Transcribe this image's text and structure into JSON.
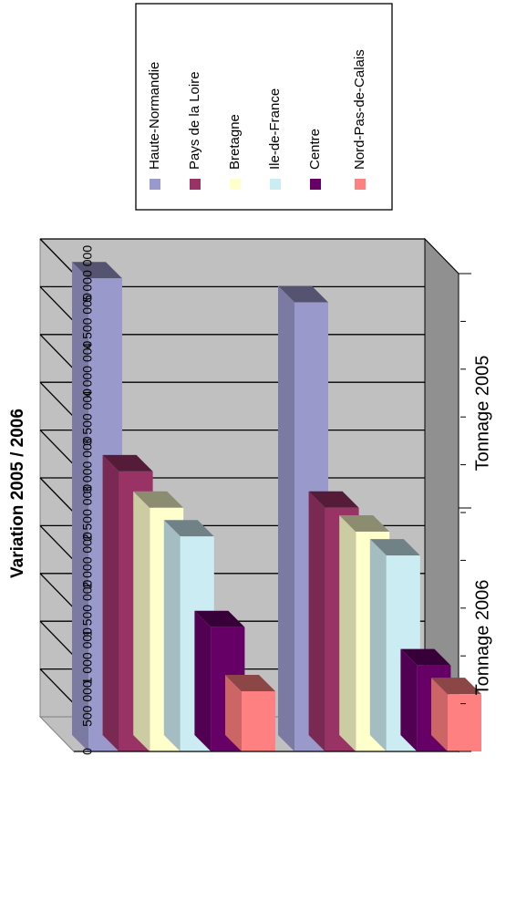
{
  "chart_data": {
    "type": "bar",
    "orientation": "horizontal-3d",
    "title": "Variation 2005 / 2006",
    "categories": [
      "Tonnage 2006",
      "Tonnage 2005"
    ],
    "series": [
      {
        "name": "Haute-Normandie",
        "values": [
          4950000,
          4700000
        ],
        "color": "#9999cc"
      },
      {
        "name": "Pays de la Loire",
        "values": [
          2930000,
          2550000
        ],
        "color": "#993366"
      },
      {
        "name": "Bretagne",
        "values": [
          2550000,
          2300000
        ],
        "color": "#ffffcc"
      },
      {
        "name": "Ile-de-France",
        "values": [
          2250000,
          2050000
        ],
        "color": "#ccecf3"
      },
      {
        "name": "Centre",
        "values": [
          1300000,
          900000
        ],
        "color": "#660066"
      },
      {
        "name": "Nord-Pas-de-Calais",
        "values": [
          630000,
          600000
        ],
        "color": "#ff8080"
      }
    ],
    "value_axis": {
      "min": 0,
      "max": 5000000,
      "step": 500000,
      "tick_labels": [
        "0",
        "500 000",
        "1 000 000",
        "1 500 000",
        "2 000 000",
        "2 500 000",
        "3 000 000",
        "3 500 000",
        "4 000 000",
        "4 500 000",
        "5 000 000"
      ]
    },
    "grid": true,
    "legend_position": "top-right"
  }
}
